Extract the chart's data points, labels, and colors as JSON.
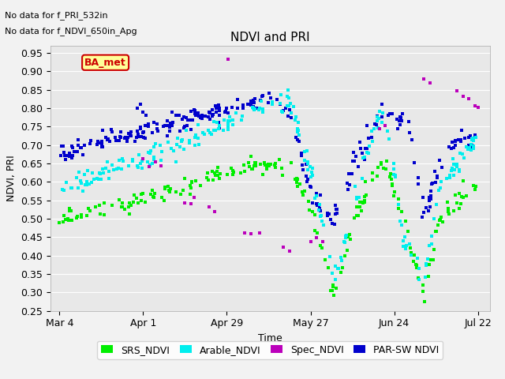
{
  "title": "NDVI and PRI",
  "ylabel": "NDVI, PRI",
  "xlabel": "Time",
  "text_line1": "No data for f_PRI_532in",
  "text_line2": "No data for f_NDVI_650in_Apg",
  "annotation_text": "BA_met",
  "ylim": [
    0.25,
    0.97
  ],
  "yticks": [
    0.25,
    0.3,
    0.35,
    0.4,
    0.45,
    0.5,
    0.55,
    0.6,
    0.65,
    0.7,
    0.75,
    0.8,
    0.85,
    0.9,
    0.95
  ],
  "xtick_labels": [
    "Mar 4",
    "Apr 1",
    "Apr 29",
    "May 27",
    "Jun 24",
    "Jul 22"
  ],
  "xtick_positions": [
    63,
    91,
    119,
    147,
    175,
    203
  ],
  "colors": {
    "SRS_NDVI": "#00ee00",
    "Arable_NDVI": "#00eeee",
    "Spec_NDVI": "#bb00bb",
    "PAR_NDVI": "#0000cc"
  },
  "background_color": "#e8e8e8",
  "grid_color": "#ffffff",
  "annotation_box_color": "#ffff99",
  "annotation_box_edge": "#cc0000"
}
